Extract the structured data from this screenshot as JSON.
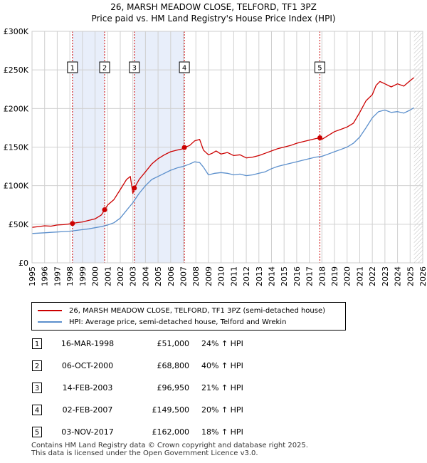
{
  "chart_data": {
    "type": "line",
    "title": "26, MARSH MEADOW CLOSE, TELFORD, TF1 3PZ",
    "subtitle": "Price paid vs. HM Land Registry's House Price Index (HPI)",
    "xlabel": "",
    "ylabel": "",
    "xlim": [
      1995,
      2026
    ],
    "ylim": [
      0,
      300000
    ],
    "x_ticks": [
      "1995",
      "1996",
      "1997",
      "1998",
      "1999",
      "2000",
      "2001",
      "2002",
      "2003",
      "2004",
      "2005",
      "2006",
      "2007",
      "2008",
      "2009",
      "2010",
      "2011",
      "2012",
      "2013",
      "2014",
      "2015",
      "2016",
      "2017",
      "2018",
      "2019",
      "2020",
      "2021",
      "2022",
      "2023",
      "2024",
      "2025",
      "2026"
    ],
    "y_ticks": [
      {
        "value": 0,
        "label": "£0"
      },
      {
        "value": 50000,
        "label": "£50K"
      },
      {
        "value": 100000,
        "label": "£100K"
      },
      {
        "value": 150000,
        "label": "£150K"
      },
      {
        "value": 200000,
        "label": "£200K"
      },
      {
        "value": 250000,
        "label": "£250K"
      },
      {
        "value": 300000,
        "label": "£300K"
      }
    ],
    "grid": true,
    "colors": {
      "property": "#cc0000",
      "hpi": "#5b8fcc",
      "shade": "#e8eefa",
      "grid": "#d0d0d0",
      "vline": "#cc0000"
    },
    "series": [
      {
        "name": "26, MARSH MEADOW CLOSE, TELFORD, TF1 3PZ (semi-detached house)",
        "x": [
          1995.0,
          1995.5,
          1996.0,
          1996.5,
          1997.0,
          1997.5,
          1998.0,
          1998.21,
          1998.5,
          1999.0,
          1999.5,
          2000.0,
          2000.5,
          2000.76,
          2001.0,
          2001.5,
          2002.0,
          2002.5,
          2002.8,
          2003.0,
          2003.12,
          2003.5,
          2004.0,
          2004.5,
          2005.0,
          2005.5,
          2006.0,
          2006.5,
          2007.0,
          2007.09,
          2007.5,
          2007.9,
          2008.3,
          2008.6,
          2009.0,
          2009.3,
          2009.6,
          2010.0,
          2010.5,
          2011.0,
          2011.5,
          2012.0,
          2012.5,
          2013.0,
          2013.5,
          2014.0,
          2014.5,
          2015.0,
          2015.5,
          2016.0,
          2016.5,
          2017.0,
          2017.5,
          2017.84,
          2018.0,
          2018.5,
          2019.0,
          2019.5,
          2020.0,
          2020.5,
          2021.0,
          2021.5,
          2022.0,
          2022.3,
          2022.6,
          2023.0,
          2023.5,
          2024.0,
          2024.5,
          2025.0,
          2025.3
        ],
        "values": [
          46000,
          47000,
          48000,
          47500,
          49000,
          49500,
          50500,
          51000,
          52000,
          53000,
          55000,
          57000,
          62000,
          68800,
          75000,
          82000,
          95000,
          108000,
          112000,
          90000,
          96950,
          108000,
          118000,
          128000,
          135000,
          140000,
          144000,
          146000,
          148000,
          149500,
          152000,
          158000,
          160000,
          146000,
          140000,
          142000,
          145000,
          141000,
          143000,
          139000,
          140000,
          136000,
          137000,
          139000,
          142000,
          145000,
          148000,
          150000,
          152000,
          155000,
          157000,
          159000,
          161000,
          162000,
          160000,
          165000,
          170000,
          173000,
          176000,
          181000,
          195000,
          210000,
          218000,
          230000,
          235000,
          232000,
          228000,
          232000,
          229000,
          236000,
          240000
        ]
      },
      {
        "name": "HPI: Average price, semi-detached house, Telford and Wrekin",
        "x": [
          1995.0,
          1995.5,
          1996.0,
          1996.5,
          1997.0,
          1997.5,
          1998.0,
          1998.5,
          1999.0,
          1999.5,
          2000.0,
          2000.5,
          2001.0,
          2001.5,
          2002.0,
          2002.5,
          2003.0,
          2003.5,
          2004.0,
          2004.5,
          2005.0,
          2005.5,
          2006.0,
          2006.5,
          2007.0,
          2007.5,
          2007.9,
          2008.3,
          2008.6,
          2009.0,
          2009.5,
          2010.0,
          2010.5,
          2011.0,
          2011.5,
          2012.0,
          2012.5,
          2013.0,
          2013.5,
          2014.0,
          2014.5,
          2015.0,
          2015.5,
          2016.0,
          2016.5,
          2017.0,
          2017.5,
          2018.0,
          2018.5,
          2019.0,
          2019.5,
          2020.0,
          2020.5,
          2021.0,
          2021.5,
          2022.0,
          2022.5,
          2023.0,
          2023.5,
          2024.0,
          2024.5,
          2025.0,
          2025.3
        ],
        "values": [
          38000,
          38500,
          39000,
          39500,
          40000,
          40500,
          41000,
          42000,
          43000,
          44000,
          45500,
          47000,
          49000,
          52000,
          58000,
          68000,
          78000,
          90000,
          100000,
          108000,
          112000,
          116000,
          120000,
          123000,
          125000,
          128000,
          131000,
          130000,
          124000,
          114000,
          116000,
          117000,
          116000,
          114000,
          115000,
          113000,
          114000,
          116000,
          118000,
          122000,
          125000,
          127000,
          129000,
          131000,
          133000,
          135000,
          137000,
          138000,
          141000,
          144000,
          147000,
          150000,
          155000,
          163000,
          175000,
          188000,
          196000,
          198000,
          195000,
          196000,
          194000,
          198000,
          201000
        ]
      }
    ],
    "sales": [
      {
        "num": "1",
        "x": 1998.21,
        "price": 51000
      },
      {
        "num": "2",
        "x": 2000.76,
        "price": 68800
      },
      {
        "num": "3",
        "x": 2003.12,
        "price": 96950
      },
      {
        "num": "4",
        "x": 2007.09,
        "price": 149500
      },
      {
        "num": "5",
        "x": 2017.84,
        "price": 162000
      }
    ],
    "shaded_spans": [
      [
        1998.21,
        2000.76
      ],
      [
        2003.12,
        2007.09
      ]
    ],
    "hatch_from": 2025.3
  },
  "legend": {
    "property": "26, MARSH MEADOW CLOSE, TELFORD, TF1 3PZ (semi-detached house)",
    "hpi": "HPI: Average price, semi-detached house, Telford and Wrekin"
  },
  "sales_table": [
    {
      "num": "1",
      "date": "16-MAR-1998",
      "price": "£51,000",
      "hpi": "24% ↑ HPI"
    },
    {
      "num": "2",
      "date": "06-OCT-2000",
      "price": "£68,800",
      "hpi": "40% ↑ HPI"
    },
    {
      "num": "3",
      "date": "14-FEB-2003",
      "price": "£96,950",
      "hpi": "21% ↑ HPI"
    },
    {
      "num": "4",
      "date": "02-FEB-2007",
      "price": "£149,500",
      "hpi": "20% ↑ HPI"
    },
    {
      "num": "5",
      "date": "03-NOV-2017",
      "price": "£162,000",
      "hpi": "18% ↑ HPI"
    }
  ],
  "footer": {
    "line1": "Contains HM Land Registry data © Crown copyright and database right 2025.",
    "line2": "This data is licensed under the Open Government Licence v3.0."
  }
}
